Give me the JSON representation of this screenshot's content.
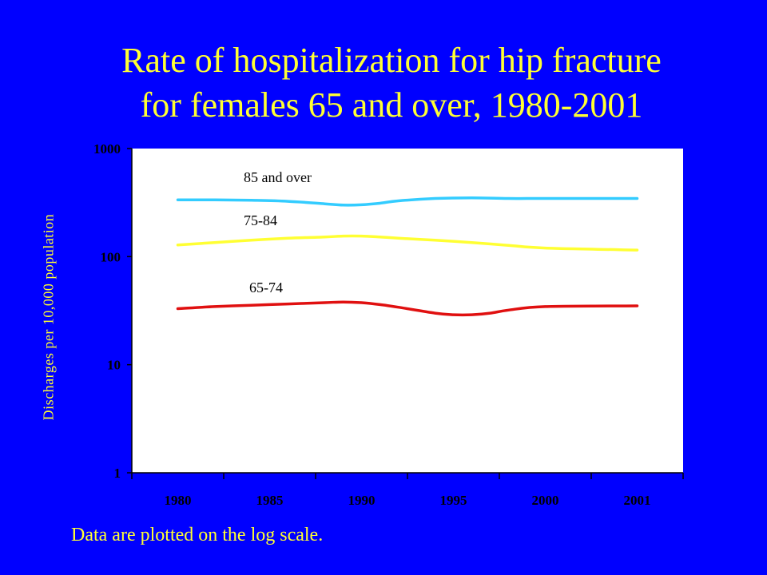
{
  "slide": {
    "title_line1": "Rate of hospitalization for hip fracture",
    "title_line2": "for females 65 and over, 1980-2001",
    "footnote": "Data are plotted on the log scale."
  },
  "chart_data": {
    "type": "line",
    "title": "Rate of hospitalization for hip fracture for females 65 and over, 1980-2001",
    "xlabel": "",
    "ylabel": "Discharges per 10,000 population",
    "y_scale": "log",
    "ylim": [
      1,
      1000
    ],
    "y_ticks": [
      {
        "value": 1,
        "label": "1"
      },
      {
        "value": 10,
        "label": "10"
      },
      {
        "value": 100,
        "label": "100"
      },
      {
        "value": 1000,
        "label": "1000"
      }
    ],
    "categories": [
      "1980",
      "1985",
      "1990",
      "1995",
      "2000",
      "2001"
    ],
    "category_positions": [
      1980,
      1985,
      1990,
      1995,
      2000,
      2001
    ],
    "grid": false,
    "legend": "inline labels",
    "series": [
      {
        "name": "85 and over",
        "color": "#33ccff",
        "x": [
          1980,
          1982,
          1984,
          1986,
          1988,
          1989,
          1990,
          1991,
          1992,
          1994,
          1996,
          1998,
          2000,
          2001
        ],
        "values": [
          335,
          335,
          332,
          325,
          308,
          300,
          302,
          312,
          328,
          345,
          350,
          345,
          345,
          345
        ]
      },
      {
        "name": "75-84",
        "color": "#ffff33",
        "x": [
          1980,
          1982,
          1984,
          1986,
          1988,
          1989,
          1990,
          1991,
          1992,
          1994,
          1996,
          1998,
          2000,
          2001
        ],
        "values": [
          128,
          135,
          142,
          148,
          152,
          155,
          155,
          152,
          148,
          142,
          135,
          127,
          120,
          115
        ]
      },
      {
        "name": "65-74",
        "color": "#e01010",
        "x": [
          1980,
          1982,
          1984,
          1986,
          1988,
          1989,
          1990,
          1991,
          1992,
          1994,
          1995,
          1996,
          1997,
          1998,
          2000,
          2001
        ],
        "values": [
          33,
          34.5,
          35.5,
          36.5,
          37.5,
          38,
          37.5,
          36,
          34,
          30,
          29,
          29,
          30,
          32,
          34.5,
          35
        ]
      }
    ]
  }
}
